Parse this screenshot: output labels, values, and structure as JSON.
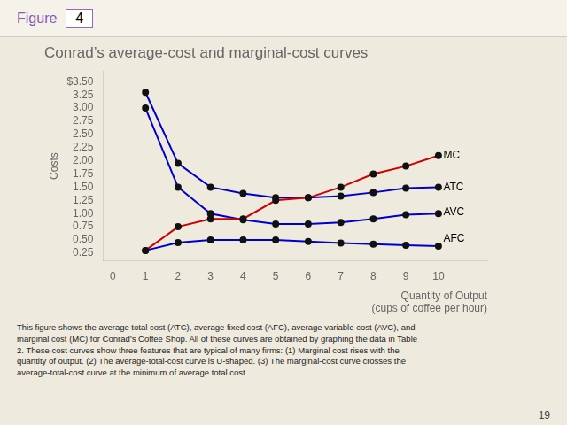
{
  "figure_label": "Figure",
  "figure_number": "4",
  "caption": "This figure shows the average total cost (ATC), average fixed cost (AFC), average variable cost (AVC), and\nmarginal cost (MC) for Conrad’s Coffee Shop. All of these curves are obtained by graphing the data in Table\n2. These cost curves show three features that are typical of many firms: (1) Marginal cost rises with the\nquantity of output. (2) The average-total-cost curve is U-shaped. (3) The marginal-cost curve crosses the\naverage-total-cost curve at the minimum of average total cost.",
  "page_number": "19",
  "chart_data": {
    "type": "line",
    "title": "Conrad’s average-cost and marginal-cost curves",
    "ylabel": "Costs",
    "xlabel": "Quantity of Output\n(cups of coffee per hour)",
    "x": [
      1,
      2,
      3,
      4,
      5,
      6,
      7,
      8,
      9,
      10
    ],
    "series": [
      {
        "name": "MC",
        "color": "#cc0000",
        "marker": "circle",
        "line_style": "solid",
        "values": [
          0.3,
          0.75,
          0.9,
          0.9,
          1.25,
          1.3,
          1.5,
          1.75,
          1.9,
          2.1
        ]
      },
      {
        "name": "ATC",
        "color": "#0000cc",
        "marker": "circle",
        "line_style": "solid",
        "values": [
          3.3,
          1.95,
          1.5,
          1.38,
          1.3,
          1.3,
          1.33,
          1.4,
          1.48,
          1.5
        ]
      },
      {
        "name": "AVC",
        "color": "#0000cc",
        "marker": "circle",
        "line_style": "solid",
        "values": [
          3.0,
          1.5,
          1.0,
          0.88,
          0.8,
          0.8,
          0.83,
          0.9,
          0.98,
          1.0
        ]
      },
      {
        "name": "AFC",
        "color": "#0000cc",
        "marker": "circle",
        "line_style": "solid",
        "values": [
          0.3,
          0.45,
          0.5,
          0.5,
          0.5,
          0.47,
          0.44,
          0.42,
          0.4,
          0.38
        ]
      }
    ],
    "annotations": [
      {
        "text": "MC",
        "x": 10.15,
        "y": 2.1
      },
      {
        "text": "ATC",
        "x": 10.15,
        "y": 1.5
      },
      {
        "text": "AVC",
        "x": 10.15,
        "y": 1.03
      },
      {
        "text": "AFC",
        "x": 10.15,
        "y": 0.52
      }
    ],
    "xlim": [
      -0.3,
      11.5
    ],
    "xticks": [
      0,
      1,
      2,
      3,
      4,
      5,
      6,
      7,
      8,
      9,
      10
    ],
    "ylim": [
      0.1,
      3.7
    ],
    "yticks": [
      0.25,
      {
        "value": 0.5,
        "label": "0.50"
      },
      0.75,
      {
        "value": 1.0,
        "label": "1.00"
      },
      1.25,
      {
        "value": 1.5,
        "label": "1.50"
      },
      1.75,
      {
        "value": 2.0,
        "label": "2.00"
      },
      2.25,
      {
        "value": 2.5,
        "label": "2.50"
      },
      2.75,
      {
        "value": 3.0,
        "label": "3.00"
      },
      3.25,
      {
        "value": 3.5,
        "label": "$3.50"
      }
    ],
    "grid": false
  }
}
